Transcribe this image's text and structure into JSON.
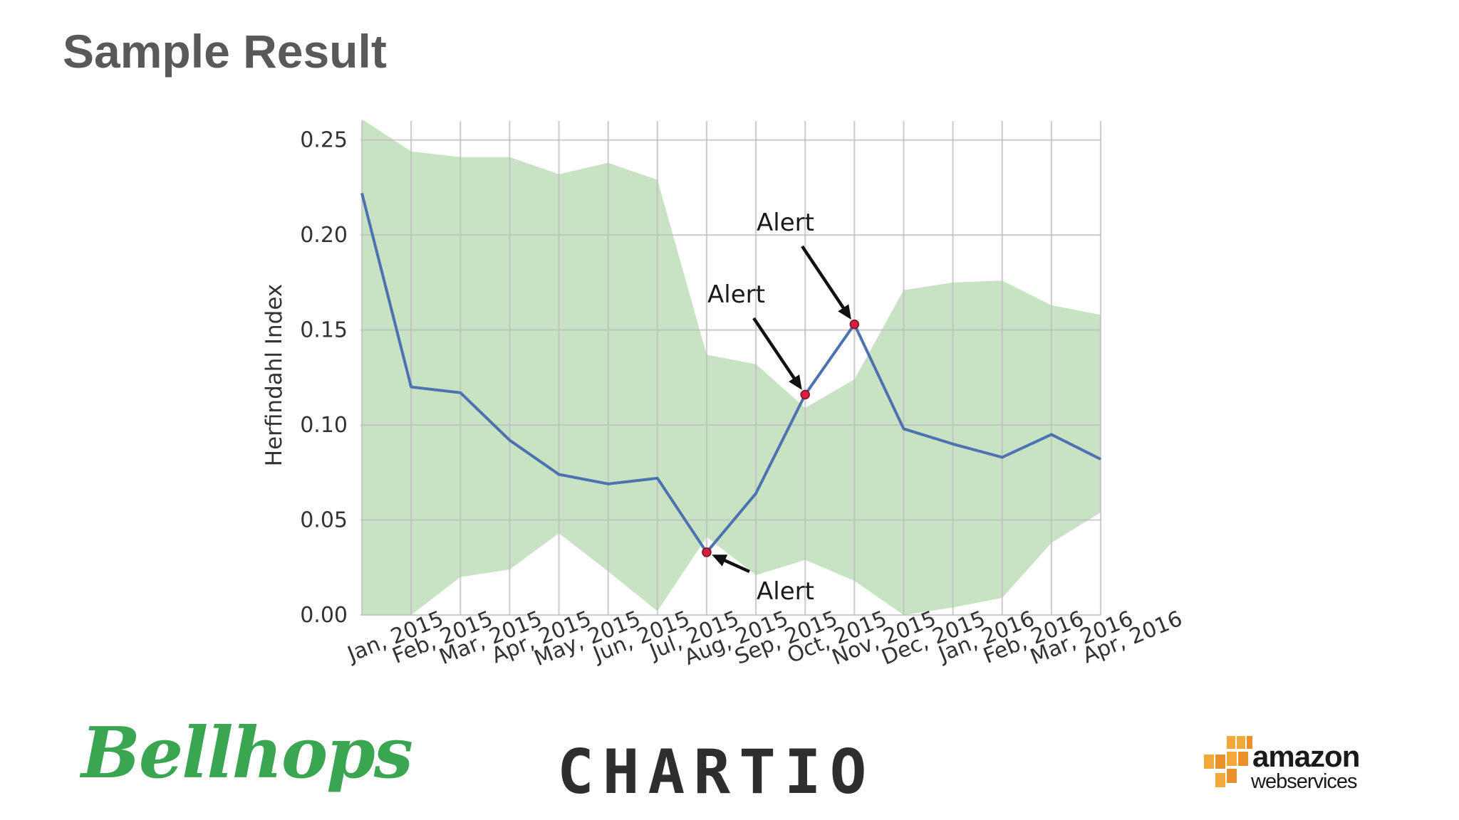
{
  "slide": {
    "title": "Sample Result"
  },
  "logos": {
    "bellhops": "Bellhops",
    "chartio": "CHARTIO",
    "aws_word": "amazon",
    "aws_sub": "webservices"
  },
  "colors": {
    "band": "#c8e2c4",
    "line": "#4c72b0",
    "alert_marker": "#d62040",
    "grid": "#bfbfbf"
  },
  "chart_data": {
    "type": "line",
    "title": "",
    "xlabel": "",
    "ylabel": "Herfindahl Index",
    "ylim": [
      0,
      0.26
    ],
    "yticks": [
      "0.00",
      "0.05",
      "0.10",
      "0.15",
      "0.20",
      "0.25"
    ],
    "ytick_values": [
      0,
      0.05,
      0.1,
      0.15,
      0.2,
      0.25
    ],
    "categories": [
      "Jan, 2015",
      "Feb, 2015",
      "Mar, 2015",
      "Apr, 2015",
      "May, 2015",
      "Jun, 2015",
      "Jul, 2015",
      "Aug, 2015",
      "Sep, 2015",
      "Oct, 2015",
      "Nov, 2015",
      "Dec, 2015",
      "Jan, 2016",
      "Feb, 2016",
      "Mar, 2016",
      "Apr, 2016"
    ],
    "grid": true,
    "series": [
      {
        "values": [
          0.222,
          0.12,
          0.117,
          0.092,
          0.074,
          0.069,
          0.072,
          0.033,
          0.064,
          0.116,
          0.153,
          0.098,
          0.09,
          0.083,
          0.095,
          0.082
        ]
      }
    ],
    "band": {
      "upper": [
        0.261,
        0.244,
        0.241,
        0.241,
        0.232,
        0.238,
        0.229,
        0.137,
        0.132,
        0.109,
        0.124,
        0.171,
        0.175,
        0.176,
        0.163,
        0.158
      ],
      "lower": [
        0.0,
        0.0,
        0.02,
        0.024,
        0.043,
        0.023,
        0.002,
        0.041,
        0.021,
        0.029,
        0.018,
        0.0,
        0.004,
        0.009,
        0.038,
        0.054
      ]
    },
    "annotations": [
      {
        "text": "Alert",
        "index": 7
      },
      {
        "text": "Alert",
        "index": 9
      },
      {
        "text": "Alert",
        "index": 10
      }
    ]
  }
}
